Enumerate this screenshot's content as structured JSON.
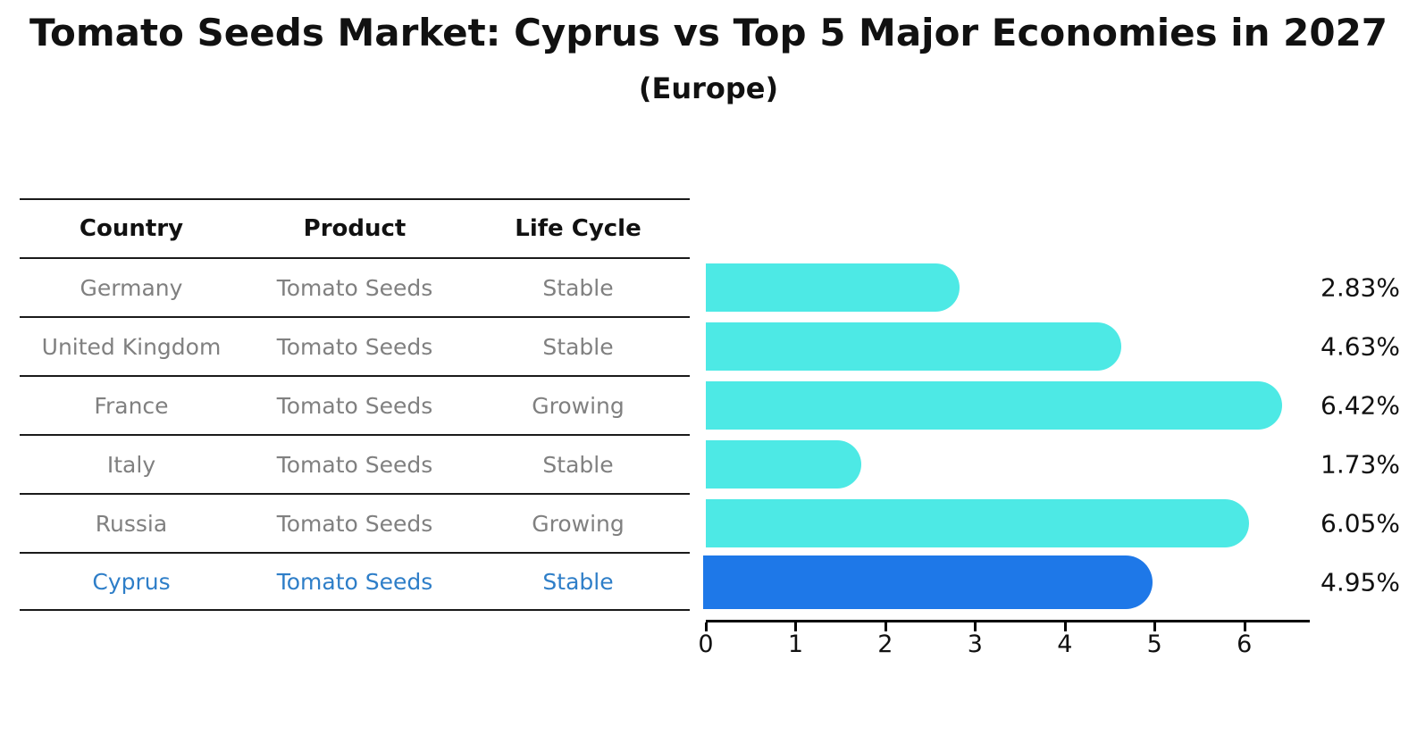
{
  "title": "Tomato Seeds Market: Cyprus vs Top 5 Major Economies in 2027",
  "subtitle": "(Europe)",
  "table": {
    "headers": [
      "Country",
      "Product",
      "Life Cycle"
    ],
    "rows": [
      {
        "country": "Germany",
        "product": "Tomato Seeds",
        "life_cycle": "Stable",
        "highlighted": false
      },
      {
        "country": "United Kingdom",
        "product": "Tomato Seeds",
        "life_cycle": "Stable",
        "highlighted": false
      },
      {
        "country": "France",
        "product": "Tomato Seeds",
        "life_cycle": "Growing",
        "highlighted": false
      },
      {
        "country": "Italy",
        "product": "Tomato Seeds",
        "life_cycle": "Stable",
        "highlighted": false
      },
      {
        "country": "Russia",
        "product": "Tomato Seeds",
        "life_cycle": "Growing",
        "highlighted": false
      },
      {
        "country": "Cyprus",
        "product": "Tomato Seeds",
        "life_cycle": "Stable",
        "highlighted": true
      }
    ]
  },
  "chart_data": {
    "type": "bar",
    "orientation": "horizontal",
    "title": "Tomato Seeds Market: Cyprus vs Top 5 Major Economies in 2027 (Europe)",
    "categories": [
      "Germany",
      "United Kingdom",
      "France",
      "Italy",
      "Russia",
      "Cyprus"
    ],
    "values": [
      2.83,
      4.63,
      6.42,
      1.73,
      6.05,
      4.95
    ],
    "value_labels": [
      "2.83%",
      "4.63%",
      "6.42%",
      "1.73%",
      "6.05%",
      "4.95%"
    ],
    "highlight_index": 5,
    "x_ticks": [
      0,
      1,
      2,
      3,
      4,
      5,
      6
    ],
    "xlim": [
      0,
      6.72
    ],
    "grid": false,
    "legend": false,
    "colors": {
      "bar_default": "#4DE9E5",
      "bar_highlight": "#1E78E8",
      "highlight_text": "#2E7EC8",
      "row_text": "#808080",
      "header_text": "#111111"
    }
  }
}
